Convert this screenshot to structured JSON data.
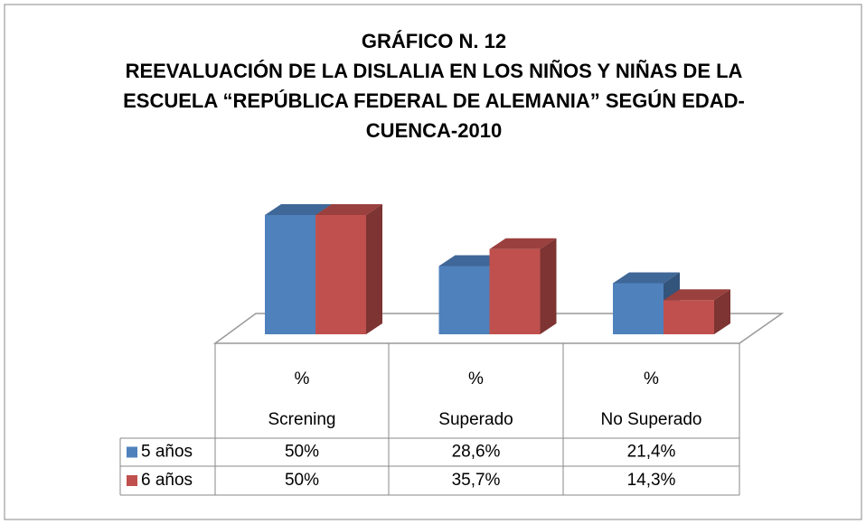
{
  "chart_data": {
    "type": "bar3d",
    "title": "GRÁFICO N. 12",
    "subtitle": [
      "REEVALUACIÓN DE LA DISLALIA EN LOS NIÑOS Y NIÑAS DE LA",
      "ESCUELA “REPÚBLICA FEDERAL DE ALEMANIA” SEGÚN EDAD-",
      "CUENCA-2010"
    ],
    "categories": [
      [
        "%",
        "Screning"
      ],
      [
        "%",
        "Superado"
      ],
      [
        "%",
        "No Superado"
      ]
    ],
    "series": [
      {
        "name": "5 años",
        "color": "#4f81bd",
        "values": [
          50,
          28.6,
          21.4
        ],
        "value_labels": [
          "50%",
          "28,6%",
          "21,4%"
        ]
      },
      {
        "name": "6 años",
        "color": "#c0504d",
        "values": [
          50,
          35.7,
          14.3
        ],
        "value_labels": [
          "50%",
          "35,7%",
          "14,3%"
        ]
      }
    ]
  }
}
